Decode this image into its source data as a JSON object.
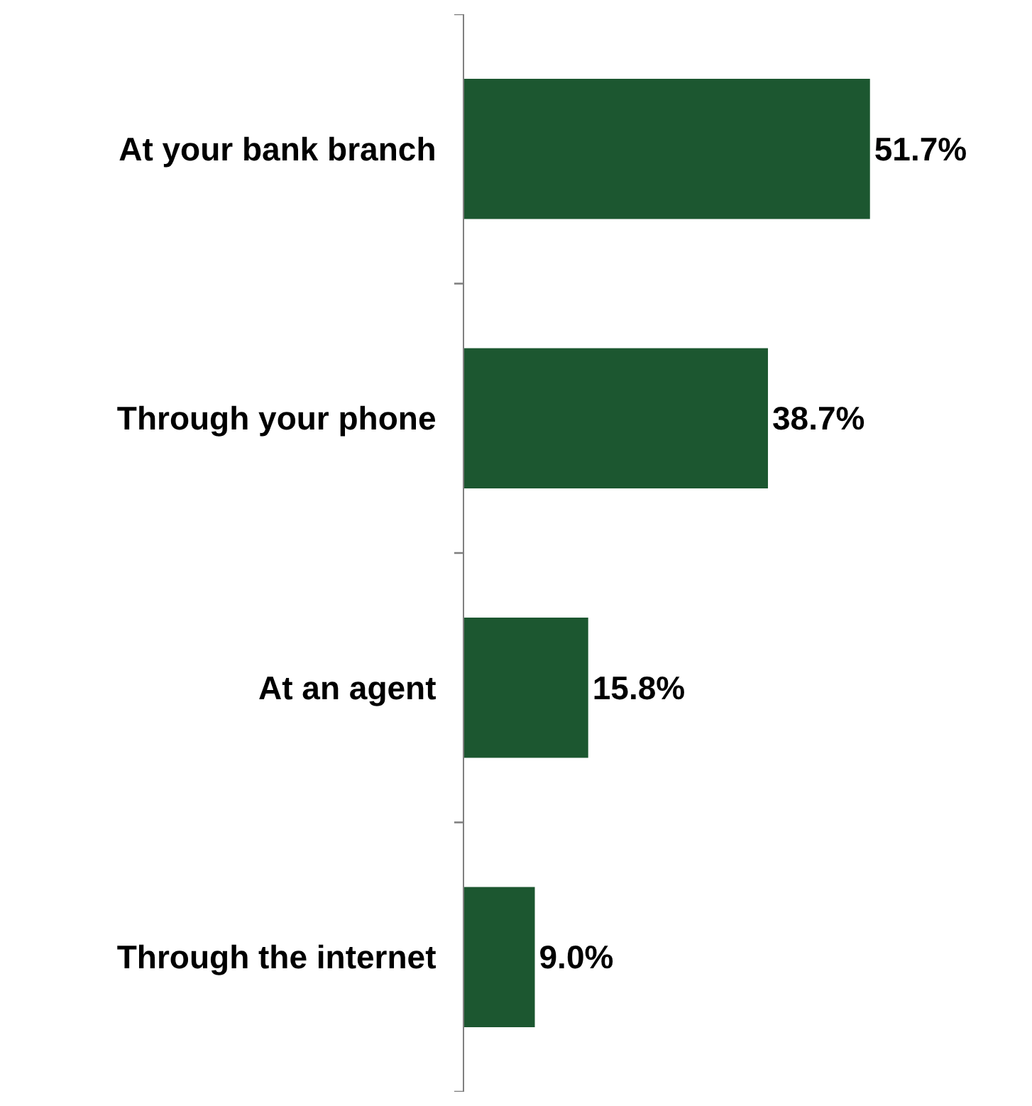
{
  "chart_data": {
    "type": "bar",
    "orientation": "horizontal",
    "categories": [
      "At your bank branch",
      "Through your phone",
      "At an agent",
      "Through the internet"
    ],
    "values": [
      51.7,
      38.7,
      15.8,
      9.0
    ],
    "value_labels": [
      "51.7%",
      "38.7%",
      "15.8%",
      "9.0%"
    ],
    "color": "#1c5730",
    "legend": false,
    "tick_labels": "y"
  }
}
